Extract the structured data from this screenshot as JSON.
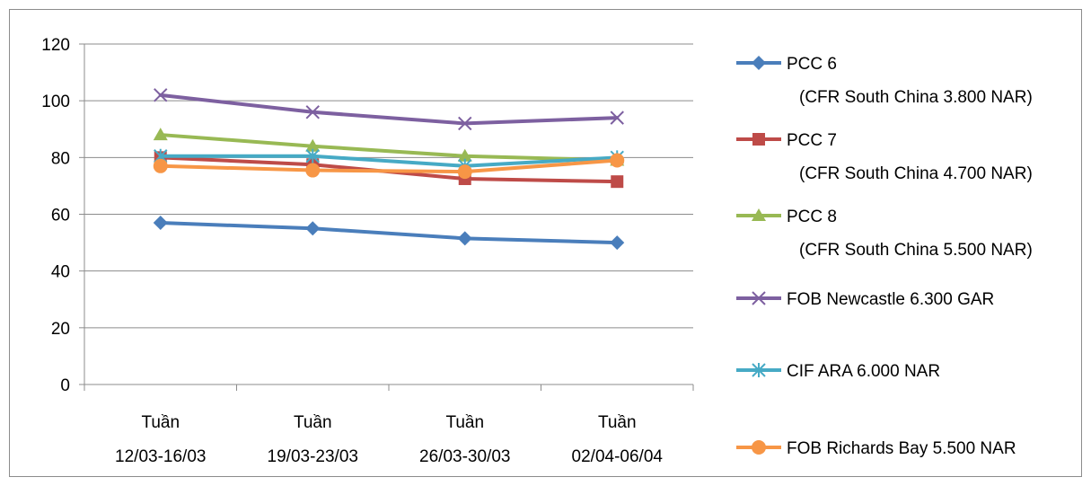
{
  "chart_data": {
    "type": "line",
    "categories": [
      [
        "Tuần",
        "12/03-16/03"
      ],
      [
        "Tuần",
        "19/03-23/03"
      ],
      [
        "Tuần",
        "26/03-30/03"
      ],
      [
        "Tuần",
        "02/04-06/04"
      ]
    ],
    "ylim": [
      0,
      120
    ],
    "yticks": [
      0,
      20,
      40,
      60,
      80,
      100,
      120
    ],
    "grid": true,
    "legend_position": "right",
    "series": [
      {
        "name": [
          "PCC 6",
          "(CFR South China 3.800 NAR)"
        ],
        "values": [
          57,
          55,
          51.5,
          50
        ],
        "color": "#4a7ebb",
        "marker": "diamond"
      },
      {
        "name": [
          "PCC 7",
          "(CFR South China 4.700 NAR)"
        ],
        "values": [
          80,
          77.5,
          72.5,
          71.5
        ],
        "color": "#be4b48",
        "marker": "square"
      },
      {
        "name": [
          "PCC 8",
          "(CFR South China 5.500 NAR)"
        ],
        "values": [
          88,
          84,
          80.5,
          79
        ],
        "color": "#98b954",
        "marker": "triangle"
      },
      {
        "name": [
          "FOB Newcastle 6.300 GAR"
        ],
        "values": [
          102,
          96,
          92,
          94
        ],
        "color": "#7d60a0",
        "marker": "x"
      },
      {
        "name": [
          "CIF ARA 6.000 NAR"
        ],
        "values": [
          80.5,
          80.5,
          77,
          80
        ],
        "color": "#46aac5",
        "marker": "star"
      },
      {
        "name": [
          "FOB Richards Bay 5.500 NAR"
        ],
        "values": [
          77,
          75.5,
          75,
          79
        ],
        "color": "#f79646",
        "marker": "circle"
      }
    ]
  }
}
